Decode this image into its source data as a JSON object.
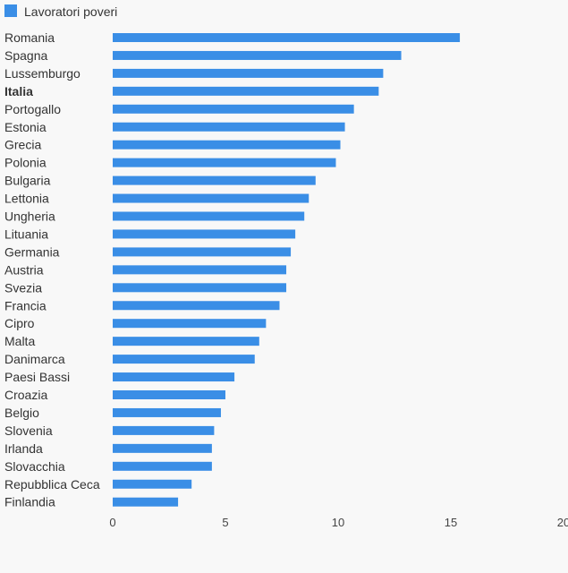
{
  "chart_data": {
    "type": "bar",
    "orientation": "horizontal",
    "legend": {
      "position": "top-left",
      "label": "Lavoratori poveri",
      "color": "#3a8ee6"
    },
    "bar_color": "#3a8ee6",
    "highlight_category": "Italia",
    "categories": [
      "Romania",
      "Spagna",
      "Lussemburgo",
      "Italia",
      "Portogallo",
      "Estonia",
      "Grecia",
      "Polonia",
      "Bulgaria",
      "Lettonia",
      "Ungheria",
      "Lituania",
      "Germania",
      "Austria",
      "Svezia",
      "Francia",
      "Cipro",
      "Malta",
      "Danimarca",
      "Paesi Bassi",
      "Croazia",
      "Belgio",
      "Slovenia",
      "Irlanda",
      "Slovacchia",
      "Repubblica Ceca",
      "Finlandia"
    ],
    "values": [
      15.4,
      12.8,
      12.0,
      11.8,
      10.7,
      10.3,
      10.1,
      9.9,
      9.0,
      8.7,
      8.5,
      8.1,
      7.9,
      7.7,
      7.7,
      7.4,
      6.8,
      6.5,
      6.3,
      5.4,
      5.0,
      4.8,
      4.5,
      4.4,
      4.4,
      3.5,
      2.9
    ],
    "xlim": [
      0,
      20
    ],
    "xticks": [
      "0",
      "5",
      "10",
      "15",
      "20"
    ],
    "grid": false
  }
}
